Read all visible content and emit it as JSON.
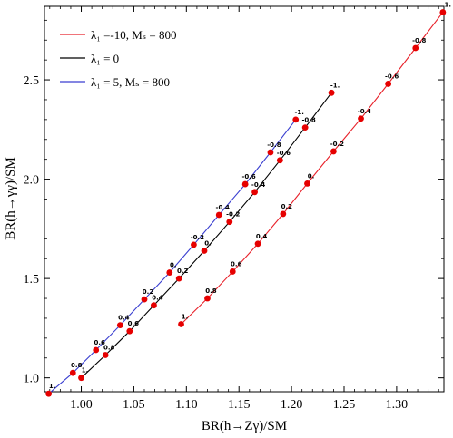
{
  "chart_data": {
    "type": "line",
    "xlabel": "BR(h→Zγ)/SM",
    "ylabel": "BR(h→γγ)/SM",
    "xlim": [
      0.965,
      1.345
    ],
    "ylim": [
      0.93,
      2.87
    ],
    "x_ticks": [
      1.0,
      1.05,
      1.1,
      1.15,
      1.2,
      1.25,
      1.3
    ],
    "x_tick_labels": [
      "1.00",
      "1.05",
      "1.10",
      "1.15",
      "1.20",
      "1.25",
      "1.30"
    ],
    "y_ticks": [
      1.0,
      1.5,
      2.0,
      2.5
    ],
    "y_tick_labels": [
      "1.0",
      "1.5",
      "2.0",
      "2.5"
    ],
    "grid": false,
    "legend_position": "top-left",
    "legend": [
      {
        "label": "λ₁ =-10, Mₛ = 800",
        "color": "#e8212a"
      },
      {
        "label": "λ₁ = 0",
        "color": "#000000"
      },
      {
        "label": "λ₁ = 5, Mₛ = 800",
        "color": "#3a3fd0"
      }
    ],
    "marker_color": "#e60000",
    "series": [
      {
        "name": "λ₁ =-10, Mₛ = 800",
        "color": "#e8212a",
        "points": [
          {
            "x": 1.095,
            "y": 1.27,
            "label": "1."
          },
          {
            "x": 1.12,
            "y": 1.4,
            "label": "0.8"
          },
          {
            "x": 1.144,
            "y": 1.535,
            "label": "0.6"
          },
          {
            "x": 1.168,
            "y": 1.675,
            "label": "0.4"
          },
          {
            "x": 1.192,
            "y": 1.825,
            "label": "0.2"
          },
          {
            "x": 1.215,
            "y": 1.978,
            "label": "0."
          },
          {
            "x": 1.24,
            "y": 2.14,
            "label": "-0.2"
          },
          {
            "x": 1.266,
            "y": 2.305,
            "label": "-0.4"
          },
          {
            "x": 1.292,
            "y": 2.48,
            "label": "-0.6"
          },
          {
            "x": 1.318,
            "y": 2.66,
            "label": "-0.8"
          },
          {
            "x": 1.344,
            "y": 2.84,
            "label": "-1."
          }
        ]
      },
      {
        "name": "λ₁ = 0",
        "color": "#000000",
        "points": [
          {
            "x": 1.0,
            "y": 1.0,
            "label": "1."
          },
          {
            "x": 1.023,
            "y": 1.115,
            "label": "0.8"
          },
          {
            "x": 1.046,
            "y": 1.235,
            "label": "0.6"
          },
          {
            "x": 1.069,
            "y": 1.365,
            "label": "0.4"
          },
          {
            "x": 1.093,
            "y": 1.5,
            "label": "0.2"
          },
          {
            "x": 1.117,
            "y": 1.64,
            "label": "0."
          },
          {
            "x": 1.141,
            "y": 1.785,
            "label": "-0.2"
          },
          {
            "x": 1.165,
            "y": 1.935,
            "label": "-0.4"
          },
          {
            "x": 1.189,
            "y": 2.095,
            "label": "-0.6"
          },
          {
            "x": 1.213,
            "y": 2.26,
            "label": "-0.8"
          },
          {
            "x": 1.238,
            "y": 2.435,
            "label": "-1."
          }
        ]
      },
      {
        "name": "λ₁ = 5, Mₛ = 800",
        "color": "#3a3fd0",
        "points": [
          {
            "x": 0.969,
            "y": 0.92,
            "label": "1."
          },
          {
            "x": 0.992,
            "y": 1.025,
            "label": "0.8"
          },
          {
            "x": 1.014,
            "y": 1.14,
            "label": "0.6"
          },
          {
            "x": 1.037,
            "y": 1.265,
            "label": "0.4"
          },
          {
            "x": 1.06,
            "y": 1.395,
            "label": "0.2"
          },
          {
            "x": 1.084,
            "y": 1.53,
            "label": "0."
          },
          {
            "x": 1.107,
            "y": 1.67,
            "label": "-0.2"
          },
          {
            "x": 1.131,
            "y": 1.82,
            "label": "-0.4"
          },
          {
            "x": 1.156,
            "y": 1.975,
            "label": "-0.6"
          },
          {
            "x": 1.18,
            "y": 2.135,
            "label": "-0.8"
          },
          {
            "x": 1.204,
            "y": 2.3,
            "label": "-1."
          }
        ]
      }
    ]
  }
}
